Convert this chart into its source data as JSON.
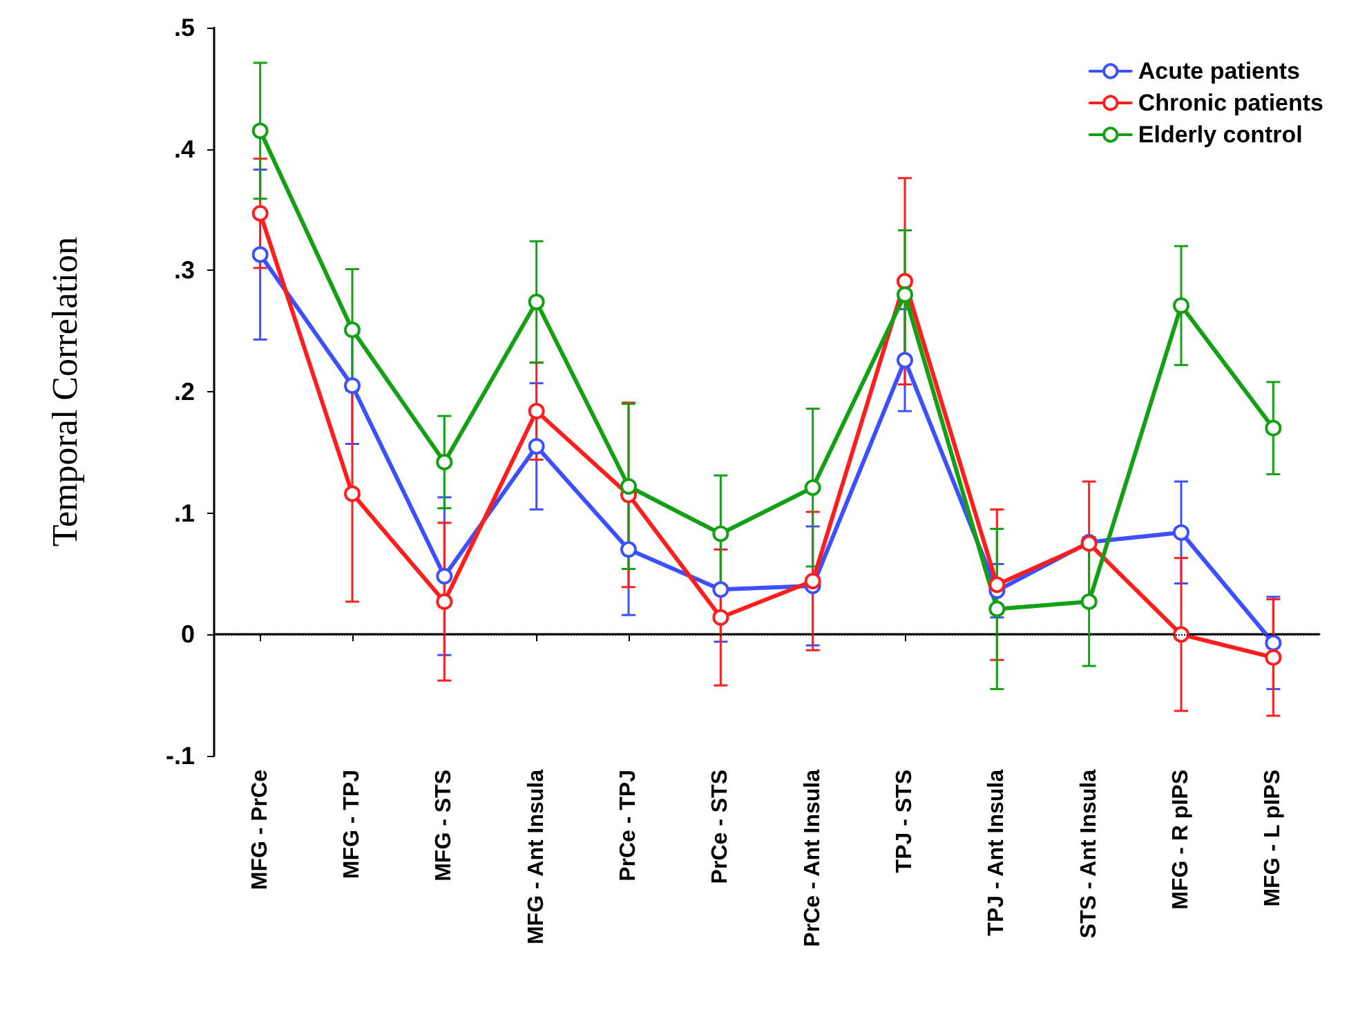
{
  "chart_data": {
    "type": "line",
    "ylabel": "Temporal Correlation",
    "categories": [
      "MFG - PrCe",
      "MFG - TPJ",
      "MFG - STS",
      "MFG - Ant Insula",
      "PrCe - TPJ",
      "PrCe - STS",
      "PrCe - Ant Insula",
      "TPJ - STS",
      "TPJ - Ant Insula",
      "STS - Ant Insula",
      "MFG - R pIPS",
      "MFG - L pIPS"
    ],
    "series": [
      {
        "name": "Acute patients",
        "color": "#3c50ff",
        "values": [
          0.313,
          0.205,
          0.048,
          0.155,
          0.07,
          0.037,
          0.04,
          0.226,
          0.036,
          0.076,
          0.084,
          -0.007
        ],
        "errors": [
          0.07,
          0.048,
          0.065,
          0.052,
          0.054,
          0.043,
          0.049,
          0.042,
          0.022,
          null,
          0.042,
          0.038
        ]
      },
      {
        "name": "Chronic patients",
        "color": "#ff1e1e",
        "values": [
          0.347,
          0.116,
          0.027,
          0.184,
          0.115,
          0.014,
          0.044,
          0.291,
          0.041,
          0.075,
          0.0,
          -0.019
        ],
        "errors": [
          0.045,
          0.089,
          0.065,
          0.04,
          0.076,
          0.056,
          0.057,
          0.085,
          0.062,
          0.051,
          0.063,
          0.048
        ]
      },
      {
        "name": "Elderly control",
        "color": "#14a014",
        "values": [
          0.415,
          0.251,
          0.142,
          0.274,
          0.122,
          0.083,
          0.121,
          0.28,
          0.021,
          0.027,
          0.271,
          0.17
        ],
        "errors": [
          0.056,
          0.05,
          0.038,
          0.05,
          0.068,
          0.048,
          0.065,
          0.053,
          0.066,
          0.053,
          0.049,
          0.038
        ]
      }
    ],
    "ylim": [
      -0.1,
      0.5
    ],
    "yticks": [
      {
        "value": -0.1,
        "label": "-.1"
      },
      0,
      {
        "value": 0.1,
        "label": ".1"
      },
      {
        "value": 0.2,
        "label": ".2"
      },
      {
        "value": 0.3,
        "label": ".3"
      },
      {
        "value": 0.4,
        "label": ".4"
      },
      {
        "value": 0.5,
        "label": ".5"
      }
    ],
    "ref_lines": [
      {
        "axis": "y",
        "value": 0,
        "line_style": "dotted",
        "color": "#000000"
      }
    ],
    "legend": "top right",
    "grid": false,
    "marker": "circle",
    "line_style": "solid"
  }
}
